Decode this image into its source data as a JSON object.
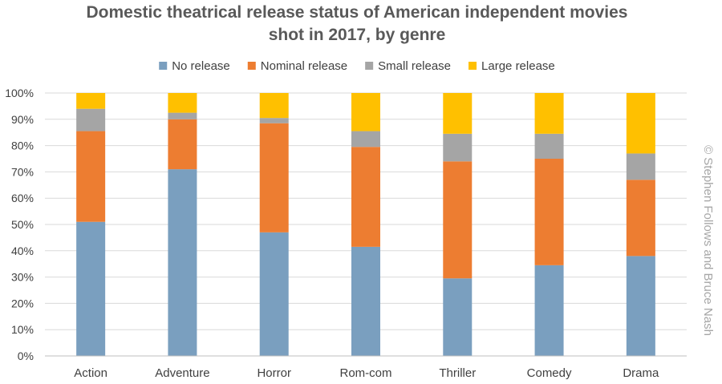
{
  "chart_data": {
    "type": "bar",
    "stacked": true,
    "title_lines": [
      "Domestic theatrical release status of American independent movies",
      "shot in 2017, by genre"
    ],
    "categories": [
      "Action",
      "Adventure",
      "Horror",
      "Rom-com",
      "Thriller",
      "Comedy",
      "Drama"
    ],
    "series": [
      {
        "name": "No release",
        "color": "#7a9fbf",
        "values": [
          51,
          71,
          47,
          41.5,
          29.5,
          34.5,
          38
        ]
      },
      {
        "name": "Nominal release",
        "color": "#ed7d31",
        "values": [
          34.5,
          19,
          41.5,
          38,
          44.5,
          40.5,
          29
        ]
      },
      {
        "name": "Small release",
        "color": "#a5a5a5",
        "values": [
          8.5,
          2.5,
          2,
          6,
          10.5,
          9.5,
          10
        ]
      },
      {
        "name": "Large release",
        "color": "#ffc000",
        "values": [
          6,
          7.5,
          9.5,
          14.5,
          15.5,
          15.5,
          23
        ]
      }
    ],
    "y_ticks": [
      "0%",
      "10%",
      "20%",
      "30%",
      "40%",
      "50%",
      "60%",
      "70%",
      "80%",
      "90%",
      "100%"
    ],
    "ylim": [
      0,
      100
    ],
    "grid": true,
    "legend_position": "top"
  },
  "watermark": "© Stephen Follows and Bruce Nash"
}
